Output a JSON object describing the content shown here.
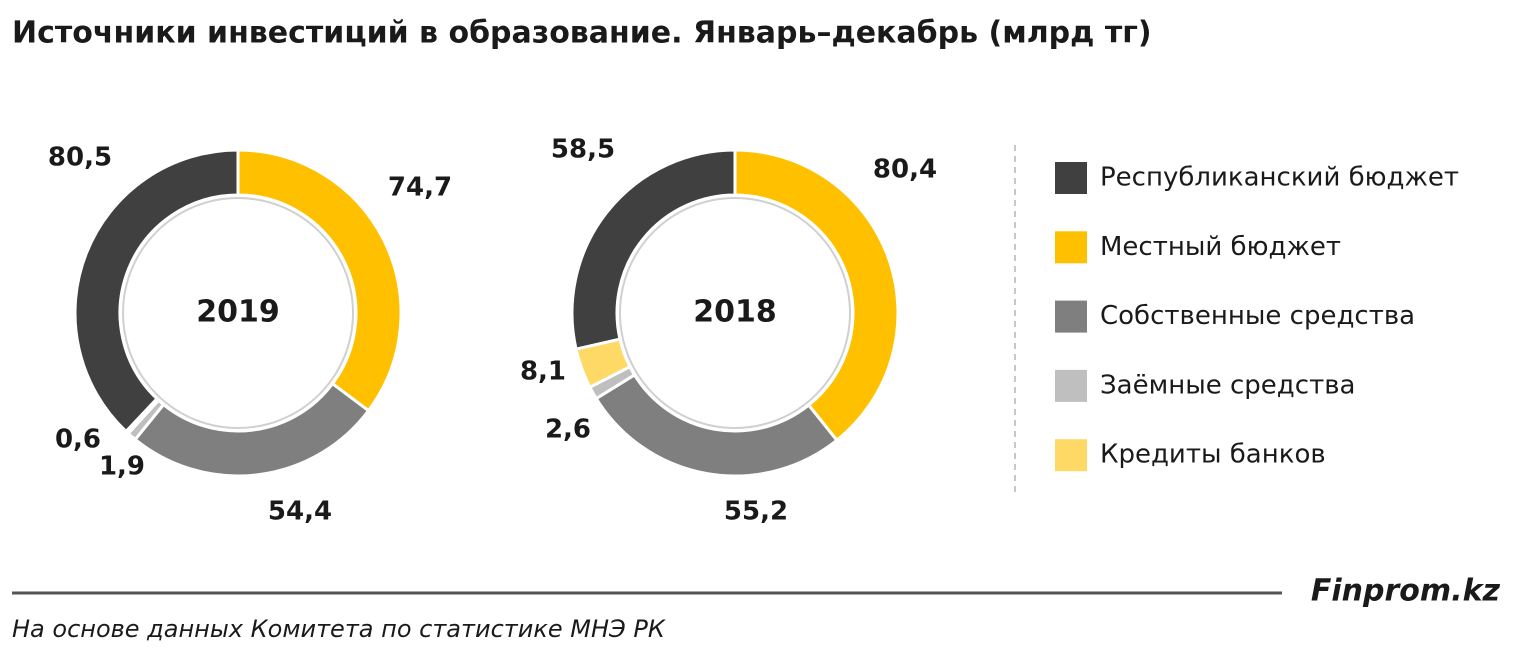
{
  "title": "Источники инвестиций в образование. Январь–декабрь (млрд тг)",
  "chart_data": [
    {
      "type": "donut",
      "center_label": "2019",
      "categories": [
        "Республиканский бюджет",
        "Местный бюджет",
        "Собственные средства",
        "Заёмные средства",
        "Кредиты банков"
      ],
      "colors": [
        "#404040",
        "#ffc000",
        "#7f7f7f",
        "#bfbfbf",
        "#ffd966"
      ],
      "values": [
        80.5,
        74.7,
        54.4,
        1.9,
        0.6
      ],
      "value_labels": [
        "80,5",
        "74,7",
        "54,4",
        "1,9",
        "0,6"
      ]
    },
    {
      "type": "donut",
      "center_label": "2018",
      "values": [
        58.5,
        80.4,
        55.2,
        2.6,
        8.1
      ],
      "value_labels": [
        "58,5",
        "80,4",
        "55,2",
        "2,6",
        "8,1"
      ]
    }
  ],
  "brand": "Finprom.kz",
  "source": "На основе данных  Комитета по статистике МНЭ РК"
}
